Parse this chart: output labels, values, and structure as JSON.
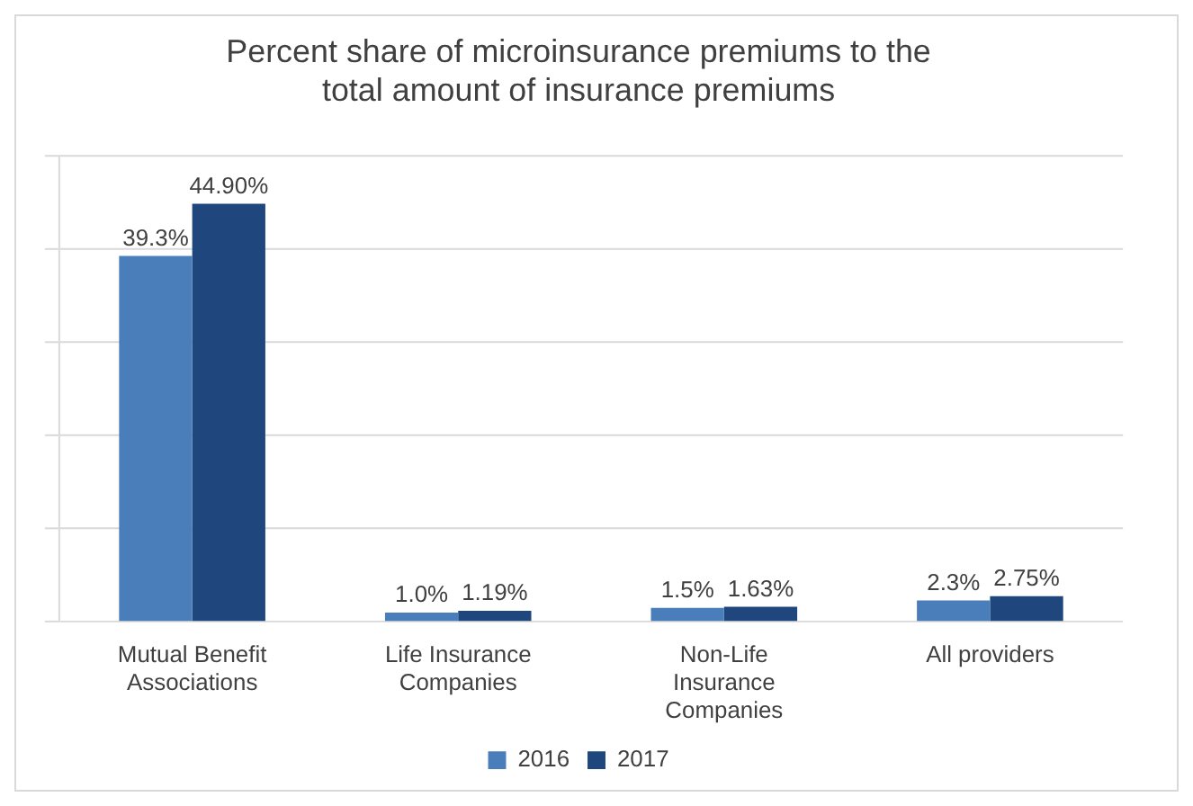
{
  "chart_data": {
    "type": "bar",
    "title": "Percent share of microinsurance premiums to the total amount of insurance premiums",
    "categories": [
      "Mutual Benefit Associations",
      "Life Insurance Companies",
      "Non-Life Insurance Companies",
      "All providers"
    ],
    "series": [
      {
        "name": "2016",
        "color": "#4a7ebb",
        "values": [
          39.3,
          1.0,
          1.5,
          2.3
        ],
        "value_labels": [
          "39.3%",
          "1.0%",
          "1.5%",
          "2.3%"
        ]
      },
      {
        "name": "2017",
        "color": "#1f477d",
        "values": [
          44.9,
          1.19,
          1.63,
          2.75
        ],
        "value_labels": [
          "44.90%",
          "1.19%",
          "1.63%",
          "2.75%"
        ]
      }
    ],
    "ylim": [
      0,
      50
    ],
    "yticks": [
      {
        "value": 0,
        "label": null
      },
      {
        "value": 10,
        "label": null
      },
      {
        "value": 20,
        "label": null
      },
      {
        "value": 30,
        "label": null
      },
      {
        "value": 40,
        "label": null
      },
      {
        "value": 50,
        "label": null
      }
    ],
    "grid": "y",
    "legend": "bottom"
  }
}
